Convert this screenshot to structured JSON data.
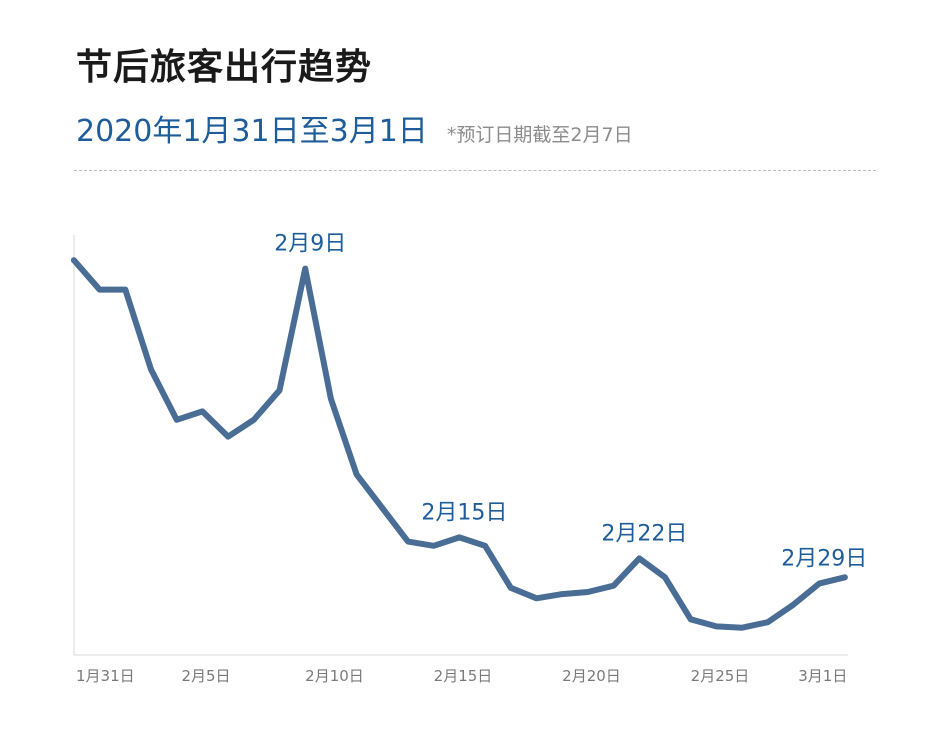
{
  "header": {
    "title": "节后旅客出行趋势",
    "subtitle": "2020年1月31日至3月1日",
    "note": "*预订日期截至2月7日"
  },
  "colors": {
    "line": "#4a6d96",
    "subtitle": "#1f5d99",
    "axis": "#d9d9d9"
  },
  "chart_data": {
    "type": "line",
    "title": "节后旅客出行趋势",
    "subtitle": "2020年1月31日至3月1日",
    "x_start": "1月31日",
    "x_end": "3月1日",
    "x_labels": [
      {
        "day": 0,
        "label": "1月31日"
      },
      {
        "day": 5,
        "label": "2月5日"
      },
      {
        "day": 10,
        "label": "2月10日"
      },
      {
        "day": 15,
        "label": "2月15日"
      },
      {
        "day": 20,
        "label": "2月20日"
      },
      {
        "day": 25,
        "label": "2月25日"
      },
      {
        "day": 29,
        "label": "3月1日"
      }
    ],
    "y_unit": "relative",
    "ylim": [
      0,
      100
    ],
    "grid": false,
    "series": [
      {
        "values": [
          [
            -0.1,
            94
          ],
          [
            0.9,
            87
          ],
          [
            1.9,
            87
          ],
          [
            2.9,
            68
          ],
          [
            3.9,
            56
          ],
          [
            4.9,
            58
          ],
          [
            5.9,
            52
          ],
          [
            6.9,
            56
          ],
          [
            7.9,
            63
          ],
          [
            8.9,
            92
          ],
          [
            9.9,
            61
          ],
          [
            10.9,
            43
          ],
          [
            11.9,
            35
          ],
          [
            12.9,
            27
          ],
          [
            13.9,
            26
          ],
          [
            14.9,
            28
          ],
          [
            15.9,
            26
          ],
          [
            16.9,
            16
          ],
          [
            17.9,
            13.5
          ],
          [
            18.9,
            14.5
          ],
          [
            19.9,
            15
          ],
          [
            20.9,
            16.5
          ],
          [
            21.9,
            23
          ],
          [
            22.9,
            18.5
          ],
          [
            23.9,
            8.5
          ],
          [
            24.9,
            6.8
          ],
          [
            25.9,
            6.5
          ],
          [
            26.9,
            7.8
          ],
          [
            27.9,
            12
          ],
          [
            28.9,
            17
          ],
          [
            29.9,
            18.5
          ]
        ]
      }
    ],
    "annotations": [
      {
        "label": "2月9日",
        "day": 8.9,
        "value": 92
      },
      {
        "label": "2月15日",
        "day": 14.9,
        "value": 28
      },
      {
        "label": "2月22日",
        "day": 21.9,
        "value": 23
      },
      {
        "label": "2月29日",
        "day": 28.9,
        "value": 17
      }
    ]
  }
}
